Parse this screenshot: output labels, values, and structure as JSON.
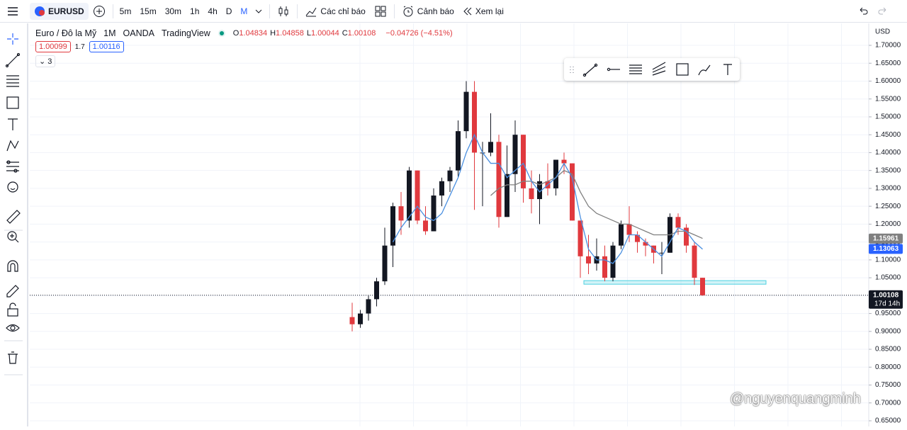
{
  "toolbar": {
    "symbol": "EURUSD",
    "intervals": [
      "5m",
      "15m",
      "30m",
      "1h",
      "4h",
      "D",
      "M"
    ],
    "indicators": "Các chỉ báo",
    "alerts": "Cảnh báo",
    "replay": "Xem lại"
  },
  "legend": {
    "name": "Euro / Đô la Mỹ",
    "interval": "1M",
    "exchange": "OANDA",
    "source": "TradingView",
    "ohlc": [
      {
        "label": "O",
        "value": "1.04834"
      },
      {
        "label": "H",
        "value": "1.04858"
      },
      {
        "label": "L",
        "value": "1.00044"
      },
      {
        "label": "C",
        "value": "1.00108"
      }
    ],
    "change": "−0.04726 (−4.51%)",
    "sell": "1.00099",
    "spread": "1.7",
    "buy": "1.00116",
    "collapsed_count": "3"
  },
  "currency": "USD",
  "watermark": "@nguyenquangminh",
  "chart_data": {
    "type": "candlestick",
    "up_color": "#131722",
    "down_color": "#e0393e",
    "open": [
      0.94,
      0.92,
      0.95,
      0.99,
      1.04,
      1.14,
      1.25,
      1.21,
      1.35,
      1.21,
      1.18,
      1.28,
      1.32,
      1.35,
      1.46,
      1.57,
      1.4,
      1.4,
      1.43,
      1.22,
      1.34,
      1.45,
      1.3,
      1.27,
      1.32,
      1.3,
      1.38,
      1.37,
      1.21,
      1.11,
      1.09,
      1.11,
      1.05,
      1.14,
      1.2,
      1.17,
      1.15,
      1.14,
      1.12,
      1.12,
      1.22,
      1.19,
      1.14,
      1.05
    ],
    "high": [
      0.98,
      0.96,
      1.0,
      1.05,
      1.19,
      1.26,
      1.29,
      1.36,
      1.35,
      1.25,
      1.3,
      1.33,
      1.36,
      1.49,
      1.6,
      1.6,
      1.43,
      1.51,
      1.45,
      1.42,
      1.49,
      1.45,
      1.35,
      1.34,
      1.37,
      1.38,
      1.4,
      1.37,
      1.21,
      1.17,
      1.16,
      1.14,
      1.15,
      1.21,
      1.25,
      1.18,
      1.16,
      1.14,
      1.15,
      1.23,
      1.23,
      1.2,
      1.15,
      1.05
    ],
    "low": [
      0.9,
      0.91,
      0.93,
      0.97,
      1.03,
      1.08,
      1.17,
      1.19,
      1.2,
      1.17,
      1.18,
      1.25,
      1.29,
      1.33,
      1.44,
      1.24,
      1.25,
      1.39,
      1.19,
      1.22,
      1.29,
      1.26,
      1.23,
      1.2,
      1.28,
      1.28,
      1.34,
      1.21,
      1.05,
      1.06,
      1.07,
      1.04,
      1.04,
      1.13,
      1.15,
      1.12,
      1.11,
      1.09,
      1.06,
      1.12,
      1.17,
      1.12,
      1.03,
      1.0
    ],
    "close": [
      0.92,
      0.95,
      0.99,
      1.04,
      1.14,
      1.25,
      1.21,
      1.35,
      1.21,
      1.18,
      1.28,
      1.32,
      1.35,
      1.46,
      1.57,
      1.4,
      1.4,
      1.43,
      1.22,
      1.34,
      1.45,
      1.3,
      1.27,
      1.32,
      1.3,
      1.38,
      1.37,
      1.21,
      1.11,
      1.09,
      1.11,
      1.05,
      1.14,
      1.2,
      1.17,
      1.15,
      1.14,
      1.12,
      1.12,
      1.22,
      1.19,
      1.14,
      1.05,
      1.00108
    ],
    "series": [
      {
        "color": "#808080",
        "values": [
          null,
          null,
          null,
          null,
          null,
          null,
          null,
          null,
          null,
          null,
          null,
          null,
          null,
          null,
          null,
          null,
          null,
          1.28,
          1.3,
          1.31,
          1.31,
          1.32,
          1.32,
          1.31,
          1.32,
          1.33,
          1.35,
          1.34,
          1.29,
          1.25,
          1.23,
          1.22,
          1.21,
          1.2,
          1.2,
          1.19,
          1.18,
          1.17,
          1.17,
          1.17,
          1.18,
          1.18,
          1.17,
          1.16
        ],
        "value_label": "1.15961",
        "label_value": 1.15961
      },
      {
        "color": "#4a8fe0",
        "values": [
          null,
          null,
          null,
          null,
          null,
          1.15,
          1.19,
          1.22,
          1.25,
          1.22,
          1.21,
          1.23,
          1.28,
          1.33,
          1.4,
          1.45,
          1.4,
          1.37,
          1.37,
          1.33,
          1.35,
          1.37,
          1.32,
          1.29,
          1.31,
          1.33,
          1.37,
          1.33,
          1.22,
          1.13,
          1.1,
          1.1,
          1.09,
          1.12,
          1.17,
          1.17,
          1.15,
          1.13,
          1.11,
          1.15,
          1.19,
          1.18,
          1.15,
          1.13
        ],
        "value_label": "1.13063",
        "label_value": 1.13063
      }
    ],
    "zone": [
      1.032,
      1.042
    ],
    "zone_color": "#4dd0e1",
    "last_price": {
      "value": 1.00108,
      "label": "1.00108"
    },
    "countdown": "17d 14h",
    "ylim": [
      0.65,
      1.7
    ],
    "yticks": [
      {
        "value": 0.65,
        "label": "0.65000"
      },
      {
        "value": 0.7,
        "label": "0.70000"
      },
      {
        "value": 0.75,
        "label": "0.75000"
      },
      {
        "value": 0.8,
        "label": "0.80000"
      },
      {
        "value": 0.85,
        "label": "0.85000"
      },
      {
        "value": 0.9,
        "label": "0.90000"
      },
      {
        "value": 0.95,
        "label": "0.95000"
      },
      {
        "value": 1.0,
        "label": "1.00000"
      },
      {
        "value": 1.05,
        "label": "1.05000"
      },
      {
        "value": 1.1,
        "label": "1.10000"
      },
      {
        "value": 1.15,
        "label": "1.15000"
      },
      {
        "value": 1.2,
        "label": "1.20000"
      },
      {
        "value": 1.25,
        "label": "1.25000"
      },
      {
        "value": 1.3,
        "label": "1.30000"
      },
      {
        "value": 1.35,
        "label": "1.35000"
      },
      {
        "value": 1.4,
        "label": "1.40000"
      },
      {
        "value": 1.45,
        "label": "1.45000"
      },
      {
        "value": 1.5,
        "label": "1.50000"
      },
      {
        "value": 1.55,
        "label": "1.55000"
      },
      {
        "value": 1.6,
        "label": "1.60000"
      },
      {
        "value": 1.65,
        "label": "1.65000"
      },
      {
        "value": 1.7,
        "label": "1.70000"
      }
    ],
    "grid": true
  }
}
